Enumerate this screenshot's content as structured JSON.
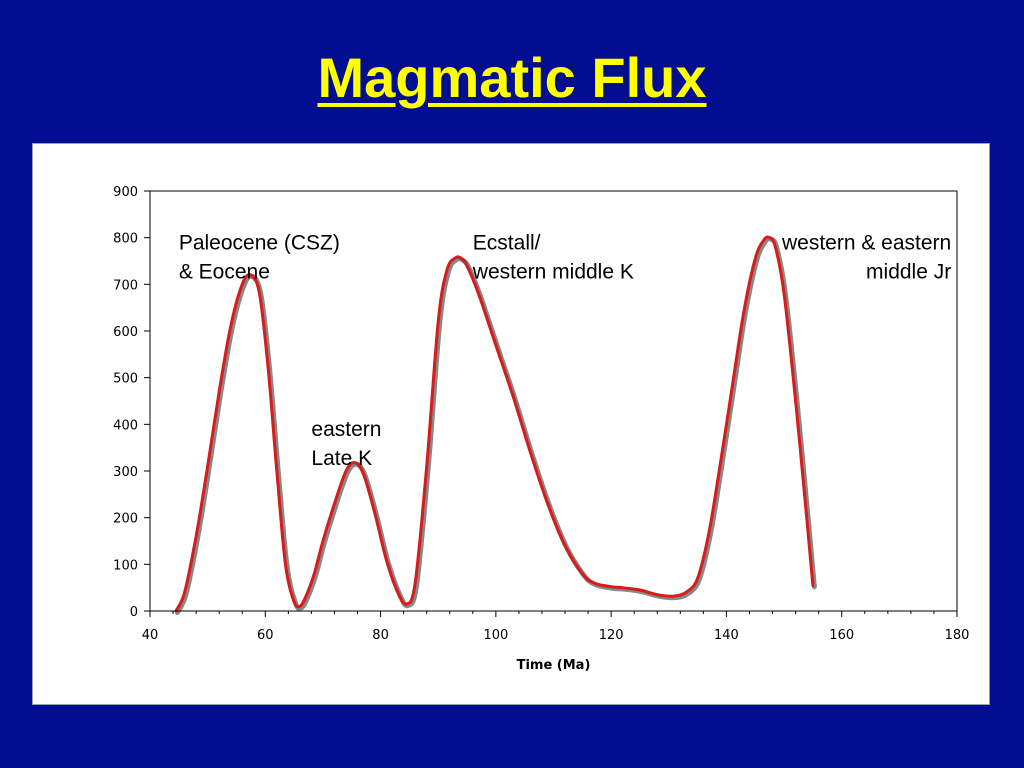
{
  "slide": {
    "title": "Magmatic Flux"
  },
  "chart_data": {
    "type": "line",
    "title": "",
    "xlabel": "Time (Ma)",
    "ylabel": "",
    "xlim": [
      40,
      180
    ],
    "ylim": [
      0,
      900
    ],
    "x_ticks": [
      40,
      60,
      80,
      100,
      120,
      140,
      160,
      180
    ],
    "y_ticks": [
      0,
      100,
      200,
      300,
      400,
      500,
      600,
      700,
      800,
      900
    ],
    "grid": false,
    "legend": "none",
    "line_color": "#d81b1b",
    "shadow_color": "#888888",
    "series": [
      {
        "x": [
          44.5,
          46,
          48,
          50,
          52,
          54,
          56,
          57.5,
          59,
          60.5,
          62,
          63.5,
          65,
          66,
          67,
          68.5,
          70,
          72,
          74,
          75.5,
          77,
          79,
          81,
          83,
          84.5,
          86,
          88,
          90,
          91.5,
          93,
          94,
          95,
          97,
          100,
          103,
          106,
          109,
          112,
          115,
          117,
          120,
          122,
          125,
          127,
          129,
          131,
          133,
          135,
          137,
          139,
          141,
          143,
          145,
          146.5,
          147.5,
          148.5,
          150,
          152,
          154,
          155
        ],
        "y": [
          0,
          40,
          160,
          310,
          470,
          610,
          700,
          720,
          680,
          520,
          300,
          100,
          20,
          10,
          30,
          80,
          150,
          230,
          300,
          318,
          295,
          210,
          110,
          40,
          15,
          60,
          310,
          620,
          730,
          757,
          755,
          740,
          680,
          570,
          460,
          340,
          230,
          140,
          80,
          60,
          52,
          50,
          45,
          38,
          33,
          32,
          40,
          70,
          170,
          320,
          480,
          640,
          755,
          795,
          800,
          780,
          680,
          450,
          190,
          55
        ]
      }
    ],
    "annotations": [
      {
        "lines": [
          "Paleocene (CSZ)",
          "& Eocene"
        ],
        "x": 45,
        "y": 775,
        "anchor": "start"
      },
      {
        "lines": [
          "eastern",
          "Late K"
        ],
        "x": 68,
        "y": 375,
        "anchor": "start"
      },
      {
        "lines": [
          "Ecstall/",
          "western middle K"
        ],
        "x": 96,
        "y": 775,
        "anchor": "start"
      },
      {
        "lines": [
          "western & eastern",
          "middle Jr"
        ],
        "x": 179,
        "y": 775,
        "anchor": "end"
      }
    ]
  }
}
